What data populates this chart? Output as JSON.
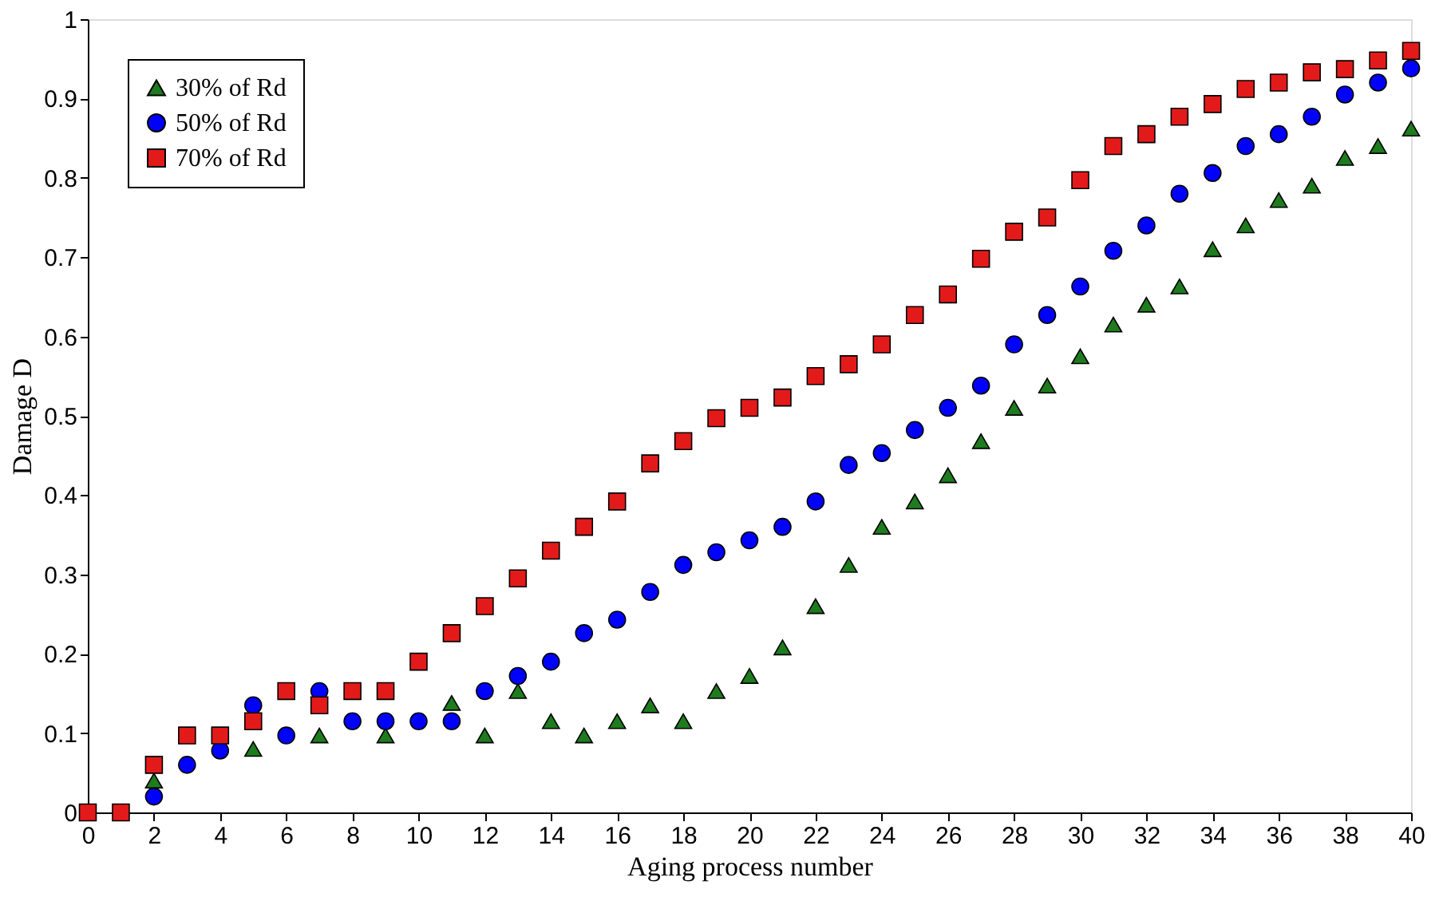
{
  "chart_data": {
    "type": "scatter",
    "xlabel": "Aging process number",
    "ylabel": "Damage D",
    "x": [
      0,
      1,
      2,
      3,
      4,
      5,
      6,
      7,
      8,
      9,
      10,
      11,
      12,
      13,
      14,
      15,
      16,
      17,
      18,
      19,
      20,
      21,
      22,
      23,
      24,
      25,
      26,
      27,
      28,
      29,
      30,
      31,
      32,
      33,
      34,
      35,
      36,
      37,
      38,
      39,
      40
    ],
    "series": [
      {
        "name": "30% of Rd",
        "color": "#1e7b1e",
        "marker": "triangle",
        "values": [
          null,
          null,
          0.04,
          null,
          null,
          0.08,
          null,
          0.097,
          null,
          0.097,
          null,
          0.138,
          0.097,
          0.153,
          0.115,
          0.097,
          0.115,
          0.135,
          0.115,
          0.153,
          0.172,
          0.208,
          0.26,
          0.312,
          0.36,
          0.392,
          0.425,
          0.468,
          0.51,
          0.538,
          0.575,
          0.615,
          0.64,
          0.663,
          0.71,
          0.74,
          0.772,
          0.79,
          0.825,
          0.84,
          0.862
        ]
      },
      {
        "name": "50% of Rd",
        "color": "#0000ff",
        "marker": "circle",
        "values": [
          null,
          null,
          0.02,
          0.06,
          0.078,
          0.135,
          0.097,
          0.153,
          0.115,
          0.115,
          0.115,
          0.115,
          0.153,
          0.172,
          0.19,
          0.226,
          0.243,
          0.278,
          0.312,
          0.328,
          0.343,
          0.36,
          0.392,
          0.438,
          0.453,
          0.482,
          0.51,
          0.538,
          0.59,
          0.627,
          0.663,
          0.708,
          0.74,
          0.78,
          0.806,
          0.84,
          0.855,
          0.877,
          0.905,
          0.92,
          0.938
        ]
      },
      {
        "name": "70% of Rd",
        "color": "#e31a1a",
        "marker": "square",
        "values": [
          0,
          0,
          0.06,
          0.097,
          0.097,
          0.115,
          0.153,
          0.135,
          0.153,
          0.153,
          0.19,
          0.226,
          0.26,
          0.295,
          0.33,
          0.36,
          0.392,
          0.44,
          0.468,
          0.497,
          0.51,
          0.523,
          0.55,
          0.565,
          0.59,
          0.627,
          0.653,
          0.698,
          0.732,
          0.75,
          0.797,
          0.84,
          0.855,
          0.877,
          0.893,
          0.912,
          0.92,
          0.933,
          0.937,
          0.948,
          0.96
        ]
      }
    ],
    "xlim": [
      0,
      40
    ],
    "xticks": [
      0,
      2,
      4,
      6,
      8,
      10,
      12,
      14,
      16,
      18,
      20,
      22,
      24,
      26,
      28,
      30,
      32,
      34,
      36,
      38,
      40
    ],
    "ylim": [
      0,
      1
    ],
    "yticks": [
      0,
      0.1,
      0.2,
      0.3,
      0.4,
      0.5,
      0.6,
      0.7,
      0.8,
      0.9,
      1
    ],
    "grid": false,
    "legend": "top left"
  }
}
